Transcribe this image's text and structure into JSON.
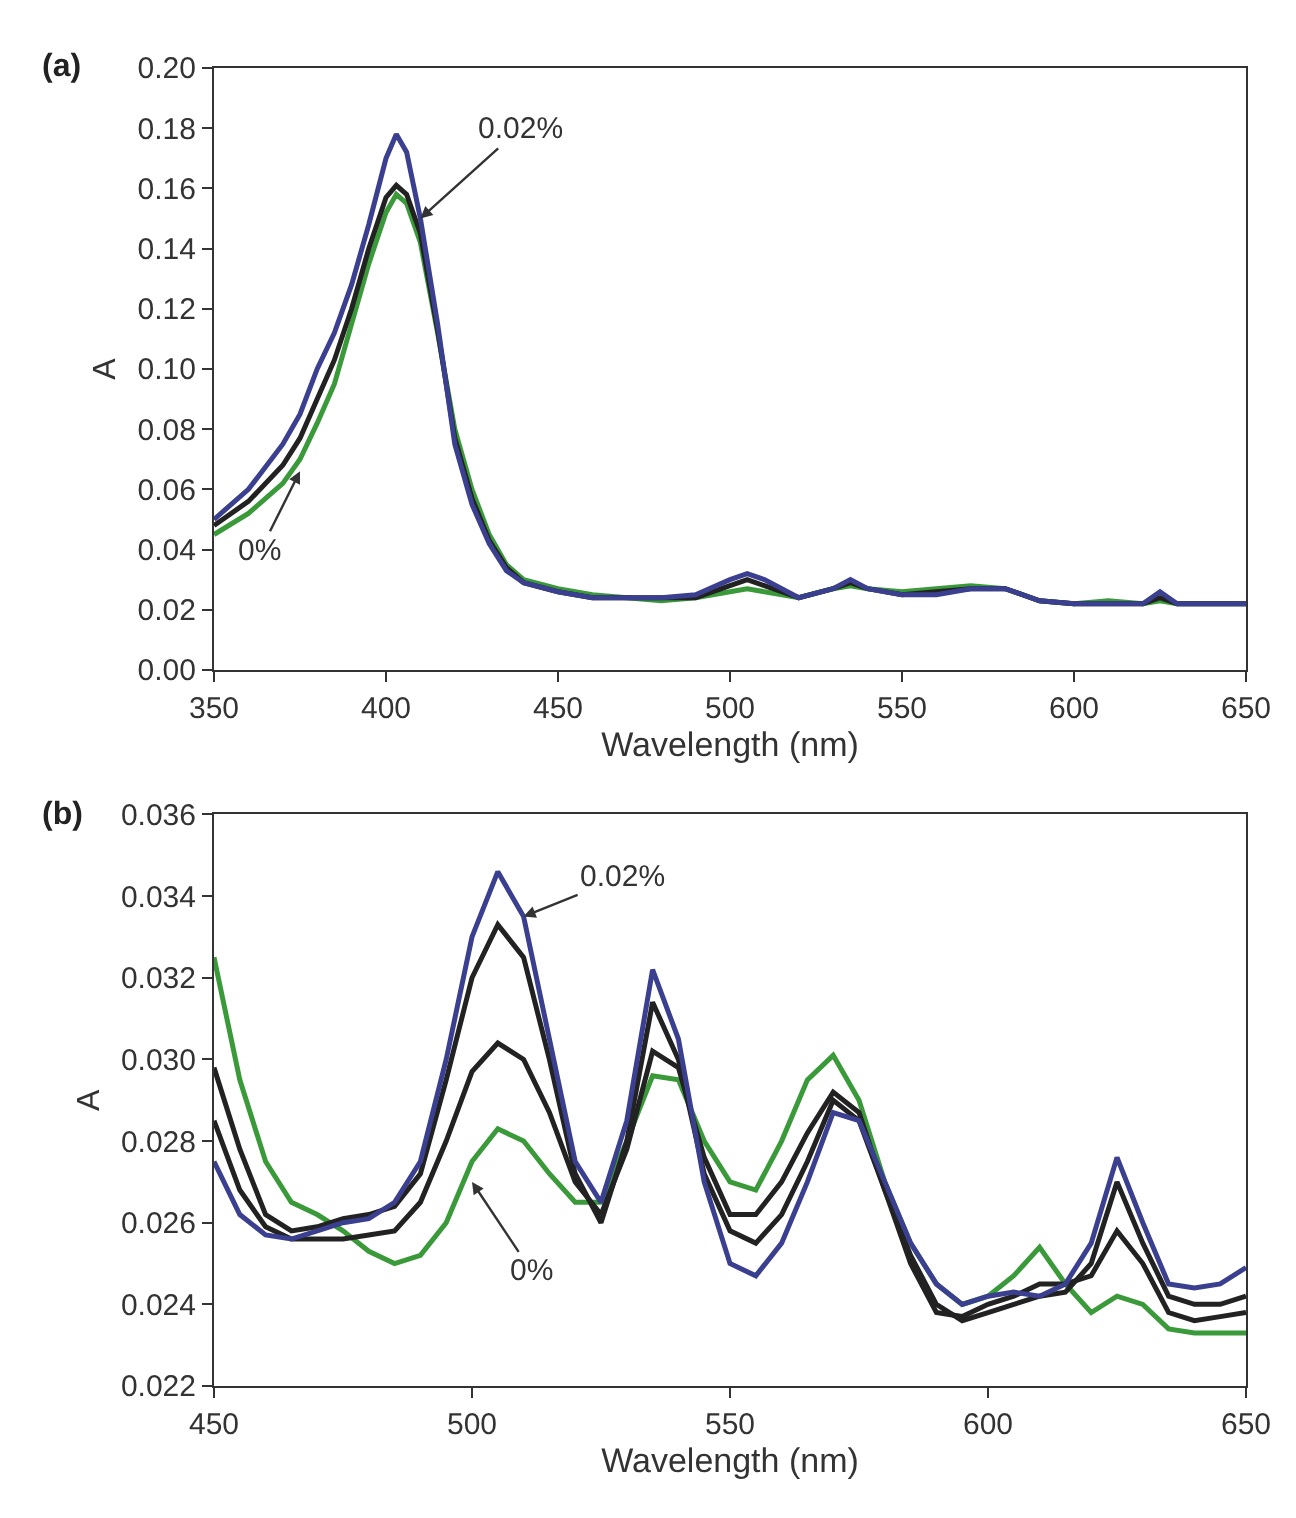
{
  "chart_data": [
    {
      "type": "line",
      "title": "(a)",
      "xlabel": "Wavelength (nm)",
      "ylabel": "A",
      "xlim": [
        350,
        650
      ],
      "xticks": [
        350,
        400,
        450,
        500,
        550,
        600,
        650
      ],
      "ylim": [
        0,
        0.2
      ],
      "yticks": [
        {
          "value": 0,
          "label": "0.00"
        },
        0.02,
        0.04,
        0.06,
        0.08,
        {
          "value": 0.1,
          "label": "0.10"
        },
        0.12,
        0.14,
        0.16,
        0.18,
        {
          "value": 0.2,
          "label": "0.20"
        }
      ],
      "x": [
        350,
        360,
        370,
        375,
        380,
        385,
        390,
        395,
        400,
        403,
        406,
        410,
        415,
        420,
        425,
        430,
        435,
        440,
        450,
        460,
        470,
        480,
        490,
        500,
        505,
        510,
        520,
        530,
        535,
        540,
        550,
        560,
        570,
        580,
        590,
        600,
        610,
        620,
        625,
        630,
        640,
        650
      ],
      "series": [
        {
          "color": "#3a9a3a",
          "values": [
            0.045,
            0.052,
            0.062,
            0.07,
            0.082,
            0.095,
            0.115,
            0.135,
            0.152,
            0.158,
            0.155,
            0.142,
            0.112,
            0.08,
            0.06,
            0.045,
            0.035,
            0.03,
            0.027,
            0.025,
            0.024,
            0.023,
            0.024,
            0.026,
            0.027,
            0.026,
            0.024,
            0.027,
            0.028,
            0.027,
            0.026,
            0.027,
            0.028,
            0.027,
            0.023,
            0.022,
            0.023,
            0.022,
            0.023,
            0.022,
            0.022,
            0.022
          ]
        },
        {
          "color": "#222222",
          "values": [
            0.048,
            0.056,
            0.068,
            0.077,
            0.09,
            0.103,
            0.12,
            0.14,
            0.157,
            0.161,
            0.158,
            0.145,
            0.113,
            0.077,
            0.057,
            0.043,
            0.034,
            0.029,
            0.026,
            0.024,
            0.024,
            0.024,
            0.024,
            0.028,
            0.03,
            0.028,
            0.024,
            0.027,
            0.029,
            0.027,
            0.025,
            0.026,
            0.027,
            0.027,
            0.023,
            0.022,
            0.022,
            0.022,
            0.024,
            0.022,
            0.022,
            0.022
          ]
        },
        {
          "color": "#3b3f8f",
          "values": [
            0.05,
            0.06,
            0.075,
            0.085,
            0.1,
            0.112,
            0.128,
            0.148,
            0.17,
            0.178,
            0.172,
            0.15,
            0.115,
            0.075,
            0.055,
            0.042,
            0.033,
            0.029,
            0.026,
            0.024,
            0.024,
            0.024,
            0.025,
            0.03,
            0.032,
            0.03,
            0.024,
            0.027,
            0.03,
            0.027,
            0.025,
            0.025,
            0.027,
            0.027,
            0.023,
            0.022,
            0.022,
            0.022,
            0.026,
            0.022,
            0.022,
            0.022
          ]
        }
      ],
      "annotations": [
        {
          "text": "0.02%",
          "x": 410,
          "y": 0.15
        },
        {
          "text": "0%",
          "x": 375,
          "y": 0.066
        }
      ]
    },
    {
      "type": "line",
      "title": "(b)",
      "xlabel": "Wavelength (nm)",
      "ylabel": "A",
      "xlim": [
        450,
        650
      ],
      "xticks": [
        450,
        500,
        550,
        600,
        650
      ],
      "ylim": [
        0.022,
        0.036
      ],
      "yticks": [
        0.022,
        0.024,
        0.026,
        0.028,
        {
          "value": 0.03,
          "label": "0.030"
        },
        0.032,
        0.034,
        0.036
      ],
      "x": [
        450,
        455,
        460,
        465,
        470,
        475,
        480,
        485,
        490,
        495,
        500,
        505,
        510,
        515,
        520,
        525,
        530,
        535,
        540,
        545,
        550,
        555,
        560,
        565,
        570,
        575,
        580,
        585,
        590,
        595,
        600,
        605,
        610,
        615,
        620,
        625,
        630,
        635,
        640,
        645,
        650
      ],
      "series": [
        {
          "color": "#3a9a3a",
          "values": [
            0.0325,
            0.0295,
            0.0275,
            0.0265,
            0.0262,
            0.0258,
            0.0253,
            0.025,
            0.0252,
            0.026,
            0.0275,
            0.0283,
            0.028,
            0.0272,
            0.0265,
            0.0265,
            0.028,
            0.0296,
            0.0295,
            0.028,
            0.027,
            0.0268,
            0.028,
            0.0295,
            0.0301,
            0.029,
            0.027,
            0.0255,
            0.0245,
            0.024,
            0.0242,
            0.0247,
            0.0254,
            0.0245,
            0.0238,
            0.0242,
            0.024,
            0.0234,
            0.0233,
            0.0233,
            0.0233
          ]
        },
        {
          "color": "#222222",
          "values": [
            0.0285,
            0.0268,
            0.0259,
            0.0256,
            0.0256,
            0.0256,
            0.0257,
            0.0258,
            0.0265,
            0.028,
            0.0297,
            0.0304,
            0.03,
            0.0287,
            0.027,
            0.0262,
            0.0278,
            0.0302,
            0.0298,
            0.0276,
            0.0262,
            0.0262,
            0.027,
            0.0282,
            0.0292,
            0.0287,
            0.0268,
            0.025,
            0.0238,
            0.0237,
            0.024,
            0.0242,
            0.0245,
            0.0245,
            0.0247,
            0.0258,
            0.025,
            0.0238,
            0.0236,
            0.0237,
            0.0238
          ]
        },
        {
          "color": "#222222",
          "values": [
            0.0298,
            0.0278,
            0.0262,
            0.0258,
            0.0259,
            0.0261,
            0.0262,
            0.0264,
            0.0272,
            0.0295,
            0.032,
            0.0333,
            0.0325,
            0.03,
            0.0272,
            0.026,
            0.028,
            0.0314,
            0.03,
            0.0272,
            0.0258,
            0.0255,
            0.0262,
            0.0275,
            0.029,
            0.0285,
            0.0268,
            0.0252,
            0.024,
            0.0236,
            0.0238,
            0.024,
            0.0242,
            0.0243,
            0.025,
            0.027,
            0.0255,
            0.0242,
            0.024,
            0.024,
            0.0242
          ]
        },
        {
          "color": "#3b3f8f",
          "values": [
            0.0275,
            0.0262,
            0.0257,
            0.0256,
            0.0258,
            0.026,
            0.0261,
            0.0265,
            0.0275,
            0.03,
            0.033,
            0.0346,
            0.0335,
            0.0305,
            0.0275,
            0.0265,
            0.0285,
            0.0322,
            0.0305,
            0.027,
            0.025,
            0.0247,
            0.0255,
            0.027,
            0.0287,
            0.0285,
            0.027,
            0.0255,
            0.0245,
            0.024,
            0.0242,
            0.0243,
            0.0242,
            0.0245,
            0.0255,
            0.0276,
            0.026,
            0.0245,
            0.0244,
            0.0245,
            0.0249
          ]
        }
      ],
      "annotations": [
        {
          "text": "0.02%",
          "x": 510,
          "y": 0.0335
        },
        {
          "text": "0%",
          "x": 500,
          "y": 0.027
        }
      ]
    }
  ]
}
